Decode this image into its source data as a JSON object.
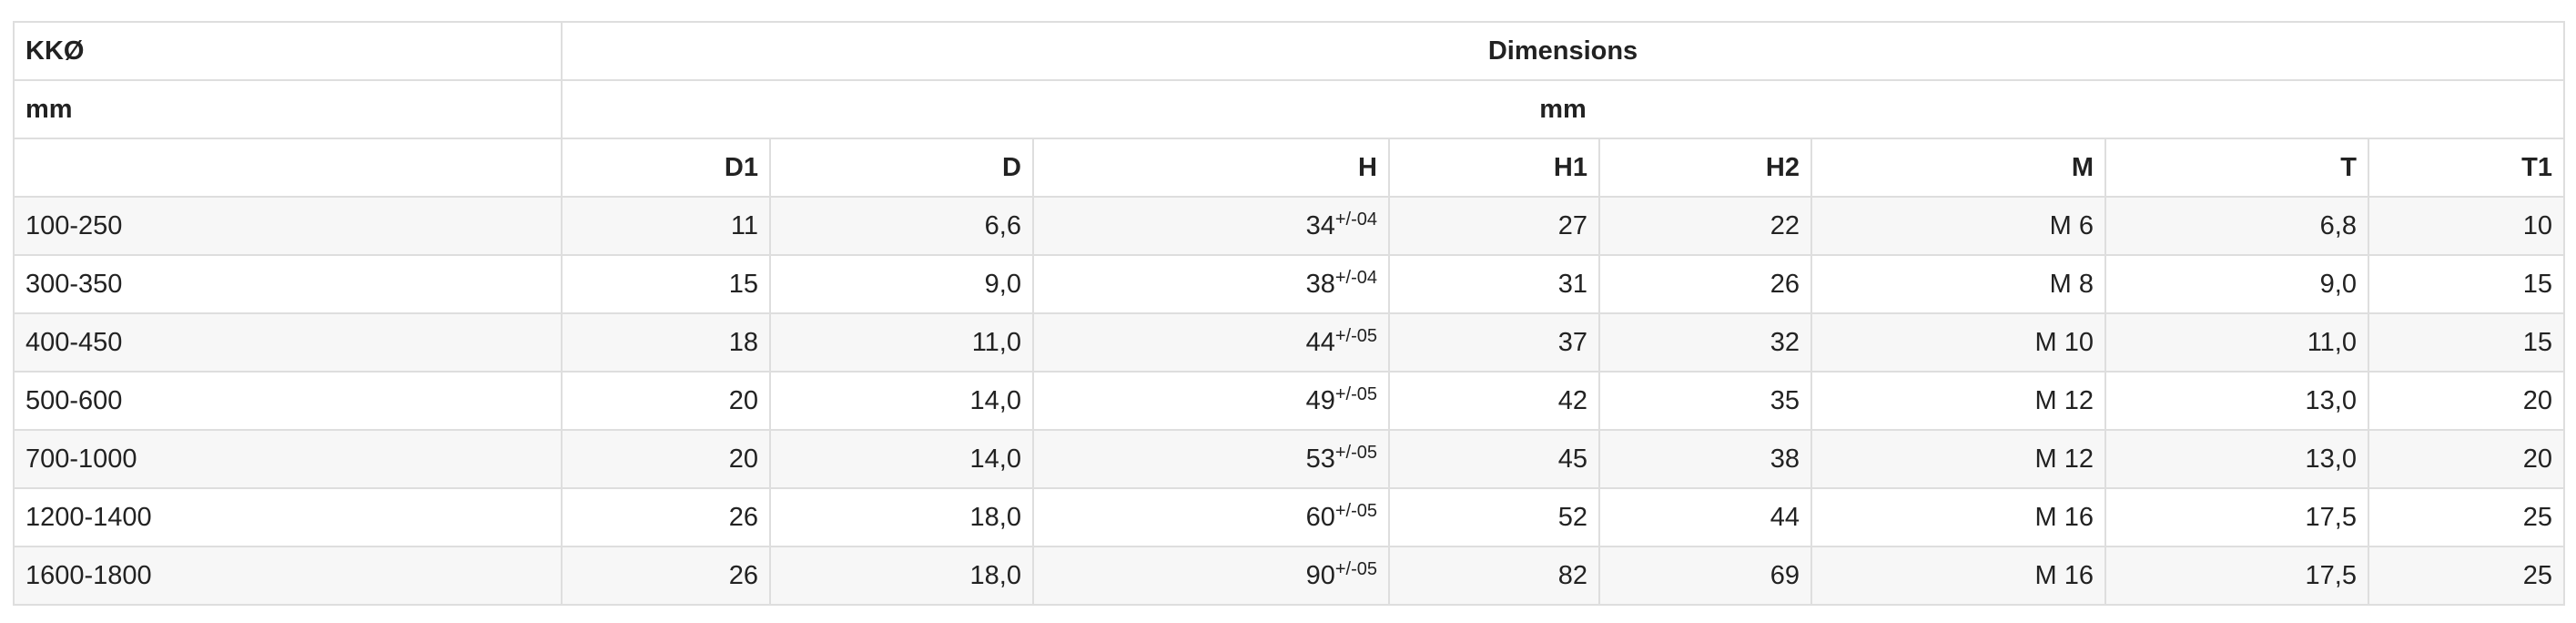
{
  "table": {
    "header": {
      "left_title": "KKØ",
      "right_title": "Dimensions",
      "left_unit": "mm",
      "right_unit": "mm",
      "columns": [
        "D1",
        "D",
        "H",
        "H1",
        "H2",
        "M",
        "T",
        "T1"
      ]
    },
    "rows": [
      [
        "100-250",
        "11",
        "6,6",
        {
          "value": "34",
          "tolerance": "+/-04"
        },
        "27",
        "22",
        "M 6",
        "6,8",
        "10"
      ],
      [
        "300-350",
        "15",
        "9,0",
        {
          "value": "38",
          "tolerance": "+/-04"
        },
        "31",
        "26",
        "M 8",
        "9,0",
        "15"
      ],
      [
        "400-450",
        "18",
        "11,0",
        {
          "value": "44",
          "tolerance": "+/-05"
        },
        "37",
        "32",
        "M 10",
        "11,0",
        "15"
      ],
      [
        "500-600",
        "20",
        "14,0",
        {
          "value": "49",
          "tolerance": "+/-05"
        },
        "42",
        "35",
        "M 12",
        "13,0",
        "20"
      ],
      [
        "700-1000",
        "20",
        "14,0",
        {
          "value": "53",
          "tolerance": "+/-05"
        },
        "45",
        "38",
        "M 12",
        "13,0",
        "20"
      ],
      [
        "1200-1400",
        "26",
        "18,0",
        {
          "value": "60",
          "tolerance": "+/-05"
        },
        "52",
        "44",
        "M 16",
        "17,5",
        "25"
      ],
      [
        "1600-1800",
        "26",
        "18,0",
        {
          "value": "90",
          "tolerance": "+/-05"
        },
        "82",
        "69",
        "M 16",
        "17,5",
        "25"
      ]
    ]
  }
}
